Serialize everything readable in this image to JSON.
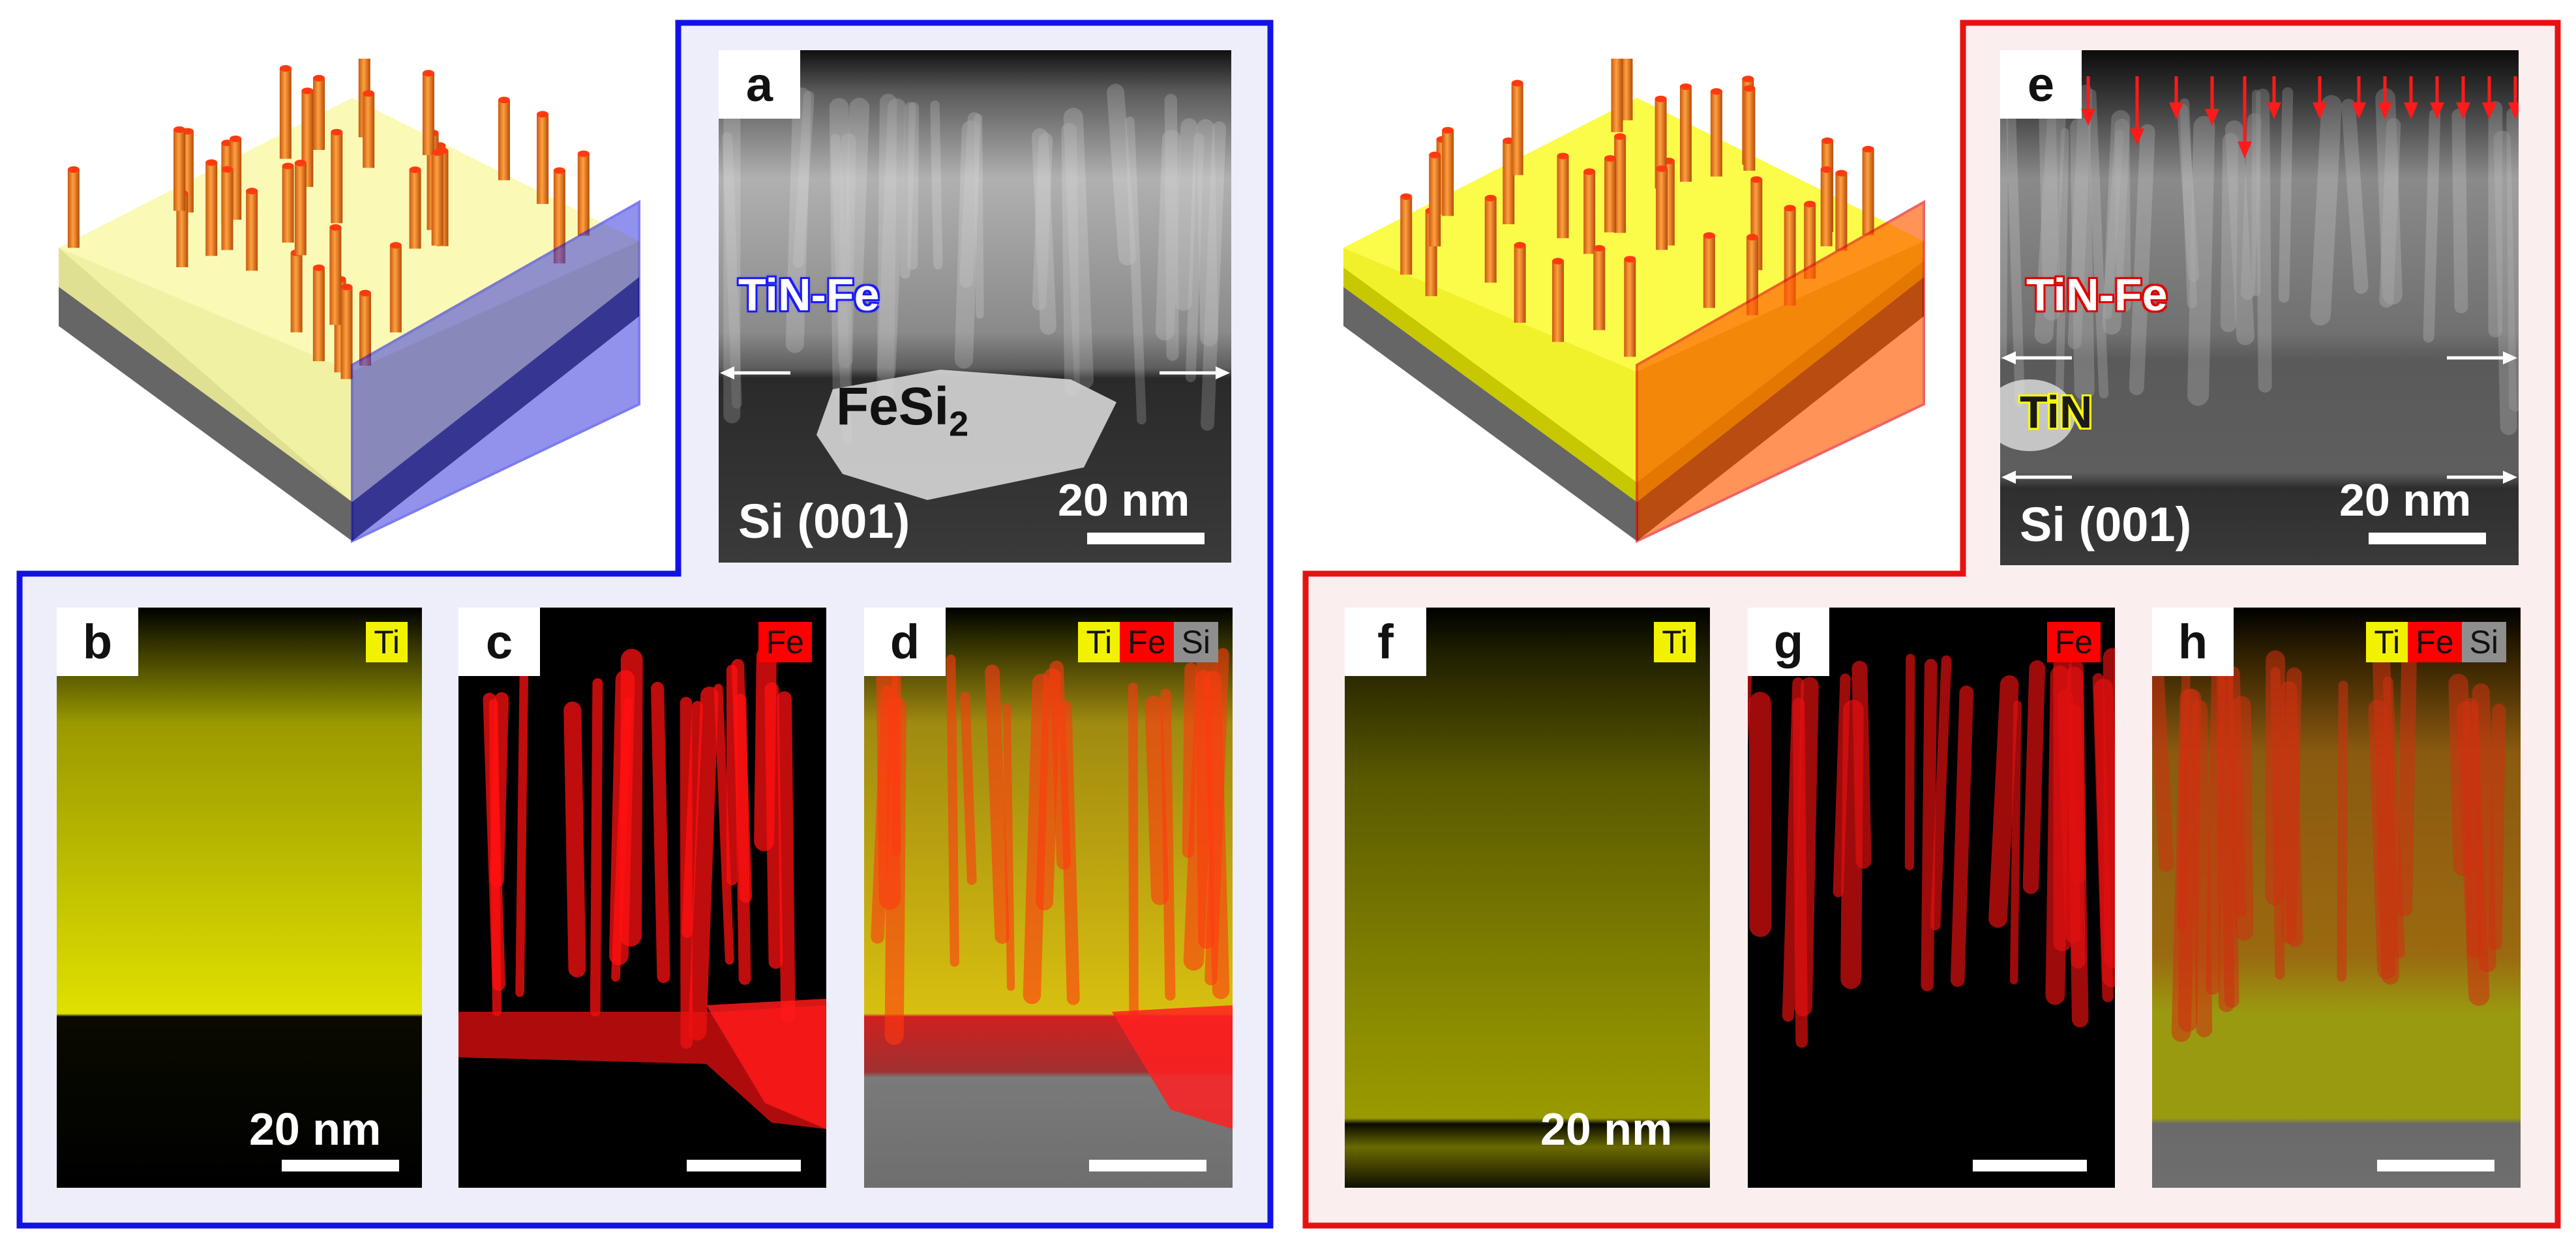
{
  "colors": {
    "blue_frame": "#1212e6",
    "red_frame": "#e61212",
    "blue_fill": "#eeeefa",
    "red_fill": "#fbeeee",
    "ti_yellow": "#f2f200",
    "fe_red": "#ff0000",
    "si_gray": "#8e8e8e",
    "pillar_orange": "#f07820"
  },
  "left_group": {
    "panel_a": {
      "letter": "a",
      "film_label": "TiN-Fe",
      "particle_label": "FeSi",
      "particle_sub": "2",
      "substrate_label": "Si (001)",
      "scale": "20 nm"
    },
    "panel_b": {
      "letter": "b",
      "elements": [
        "Ti"
      ],
      "scale": "20 nm"
    },
    "panel_c": {
      "letter": "c",
      "elements": [
        "Fe"
      ],
      "scale": ""
    },
    "panel_d": {
      "letter": "d",
      "elements": [
        "Ti",
        "Fe",
        "Si"
      ],
      "scale": ""
    }
  },
  "right_group": {
    "panel_e": {
      "letter": "e",
      "film_label": "TiN-Fe",
      "buffer_label": "TiN",
      "substrate_label": "Si (001)",
      "scale": "20 nm"
    },
    "panel_f": {
      "letter": "f",
      "elements": [
        "Ti"
      ],
      "scale": "20 nm"
    },
    "panel_g": {
      "letter": "g",
      "elements": [
        "Fe"
      ],
      "scale": ""
    },
    "panel_h": {
      "letter": "h",
      "elements": [
        "Ti",
        "Fe",
        "Si"
      ],
      "scale": ""
    }
  }
}
